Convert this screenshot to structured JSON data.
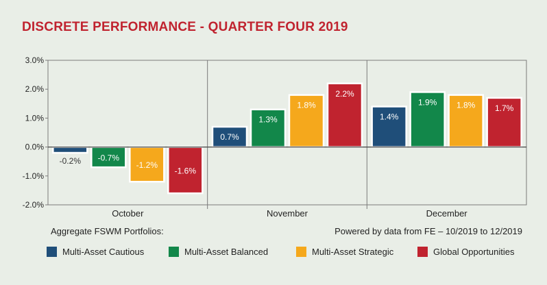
{
  "title": "DISCRETE PERFORMANCE - QUARTER FOUR 2019",
  "footer": {
    "left": "Aggregate FSWM Portfolios:",
    "right": "Powered by data from FE – 10/2019 to 12/2019"
  },
  "chart_data": {
    "type": "bar",
    "title": "DISCRETE PERFORMANCE - QUARTER FOUR 2019",
    "categories": [
      "October",
      "November",
      "December"
    ],
    "ylim": [
      -2.0,
      3.0
    ],
    "yticks": [
      "3.0%",
      "2.0%",
      "1.0%",
      "0.0%",
      "-1.0%",
      "-2.0%"
    ],
    "ytick_values": [
      3,
      2,
      1,
      0,
      -1,
      -2
    ],
    "grid": "vertical-category-separators",
    "legend_position": "bottom",
    "series": [
      {
        "name": "Multi-Asset Cautious",
        "color": "#1f4e79",
        "values": [
          -0.2,
          0.7,
          1.4
        ],
        "labels": [
          "-0.2%",
          "0.7%",
          "1.4%"
        ]
      },
      {
        "name": "Multi-Asset Balanced",
        "color": "#12874a",
        "values": [
          -0.7,
          1.3,
          1.9
        ],
        "labels": [
          "-0.7%",
          "1.3%",
          "1.9%"
        ]
      },
      {
        "name": "Multi-Asset Strategic",
        "color": "#f5a81c",
        "values": [
          -1.2,
          1.8,
          1.8
        ],
        "labels": [
          "-1.2%",
          "1.8%",
          "1.8%"
        ]
      },
      {
        "name": "Global Opportunities",
        "color": "#c0232f",
        "values": [
          -1.6,
          2.2,
          1.7
        ],
        "labels": [
          "-1.6%",
          "2.2%",
          "1.7%"
        ]
      }
    ]
  }
}
